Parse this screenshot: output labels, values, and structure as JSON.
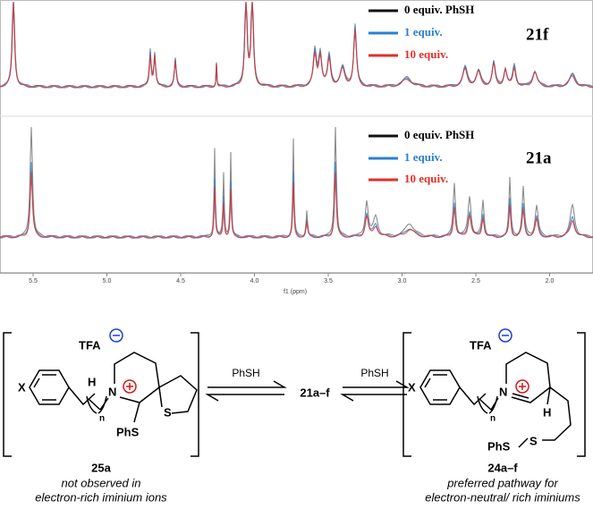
{
  "spectra": [
    {
      "label": "21f",
      "legend": [
        "0 equiv. PhSH",
        "1 equiv.",
        "10 equiv."
      ]
    },
    {
      "label": "21a",
      "legend": [
        "0 equiv. PhSH",
        "1 equiv.",
        "10 equiv."
      ]
    }
  ],
  "axis": {
    "ticks": [
      "5.5",
      "5.0",
      "4.5",
      "4.0",
      "3.5",
      "3.0",
      "2.5",
      "2.0"
    ],
    "title": "f1 (ppm)"
  },
  "scheme": {
    "left": {
      "counterion": "TFA",
      "substituent": "X",
      "h": "H",
      "n_atom": "N",
      "n_index": "n",
      "s_atom": "S",
      "phs": "PhS",
      "id": "25a",
      "caption": [
        "not observed in",
        "electron-rich iminium ions"
      ]
    },
    "arrow1": {
      "reagent": "PhSH"
    },
    "center": "21a–f",
    "arrow2": {
      "reagent": "PhSH"
    },
    "right": {
      "counterion": "TFA",
      "substituent": "X",
      "h": "H",
      "n_atom": "N",
      "n_index": "n",
      "s_atom": "S",
      "phs": "PhS",
      "id": "24a–f",
      "caption": [
        "preferred pathway for",
        "electron-neutral/ rich iminiums"
      ]
    }
  }
}
